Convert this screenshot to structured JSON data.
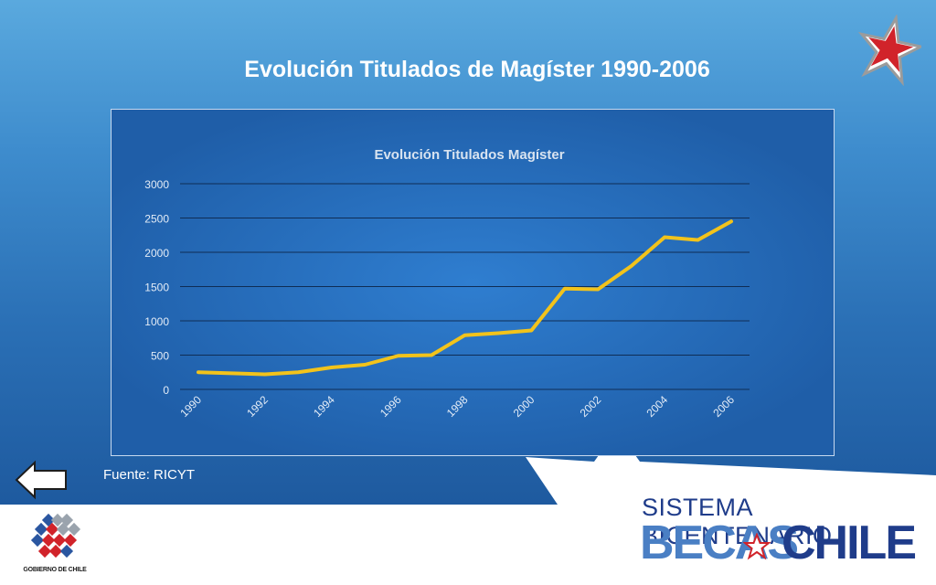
{
  "slide": {
    "title": "Evolución Titulados de Magíster 1990-2006",
    "source": "Fuente: RICYT",
    "back_icon": "left-arrow-icon"
  },
  "branding": {
    "government_label": "GOBIERNO DE CHILE",
    "program_line1": "SISTEMA BICENTENARIO",
    "program_line2_a": "BECAS",
    "program_line2_b": "CHILE"
  },
  "colors": {
    "line": "#f2c31b",
    "grid": "#0f2d55",
    "axis_text": "#e3ecf7",
    "title_text": "#d8e3f0"
  },
  "chart_data": {
    "type": "line",
    "title": "Evolución Titulados Magíster",
    "xlabel": "",
    "ylabel": "",
    "x": [
      1990,
      1991,
      1992,
      1993,
      1994,
      1995,
      1996,
      1997,
      1998,
      1999,
      2000,
      2001,
      2002,
      2003,
      2004,
      2005,
      2006
    ],
    "x_tick_labels": [
      "1990",
      "1992",
      "1994",
      "1996",
      "1998",
      "2000",
      "2002",
      "2004",
      "2006"
    ],
    "series": [
      {
        "values": [
          250,
          235,
          220,
          250,
          320,
          360,
          490,
          500,
          790,
          820,
          860,
          1470,
          1460,
          1800,
          2220,
          2180,
          2450
        ]
      }
    ],
    "ylim": [
      0,
      3000
    ],
    "y_ticks": [
      0,
      500,
      1000,
      1500,
      2000,
      2500,
      3000
    ],
    "grid": true,
    "legend": "none"
  }
}
